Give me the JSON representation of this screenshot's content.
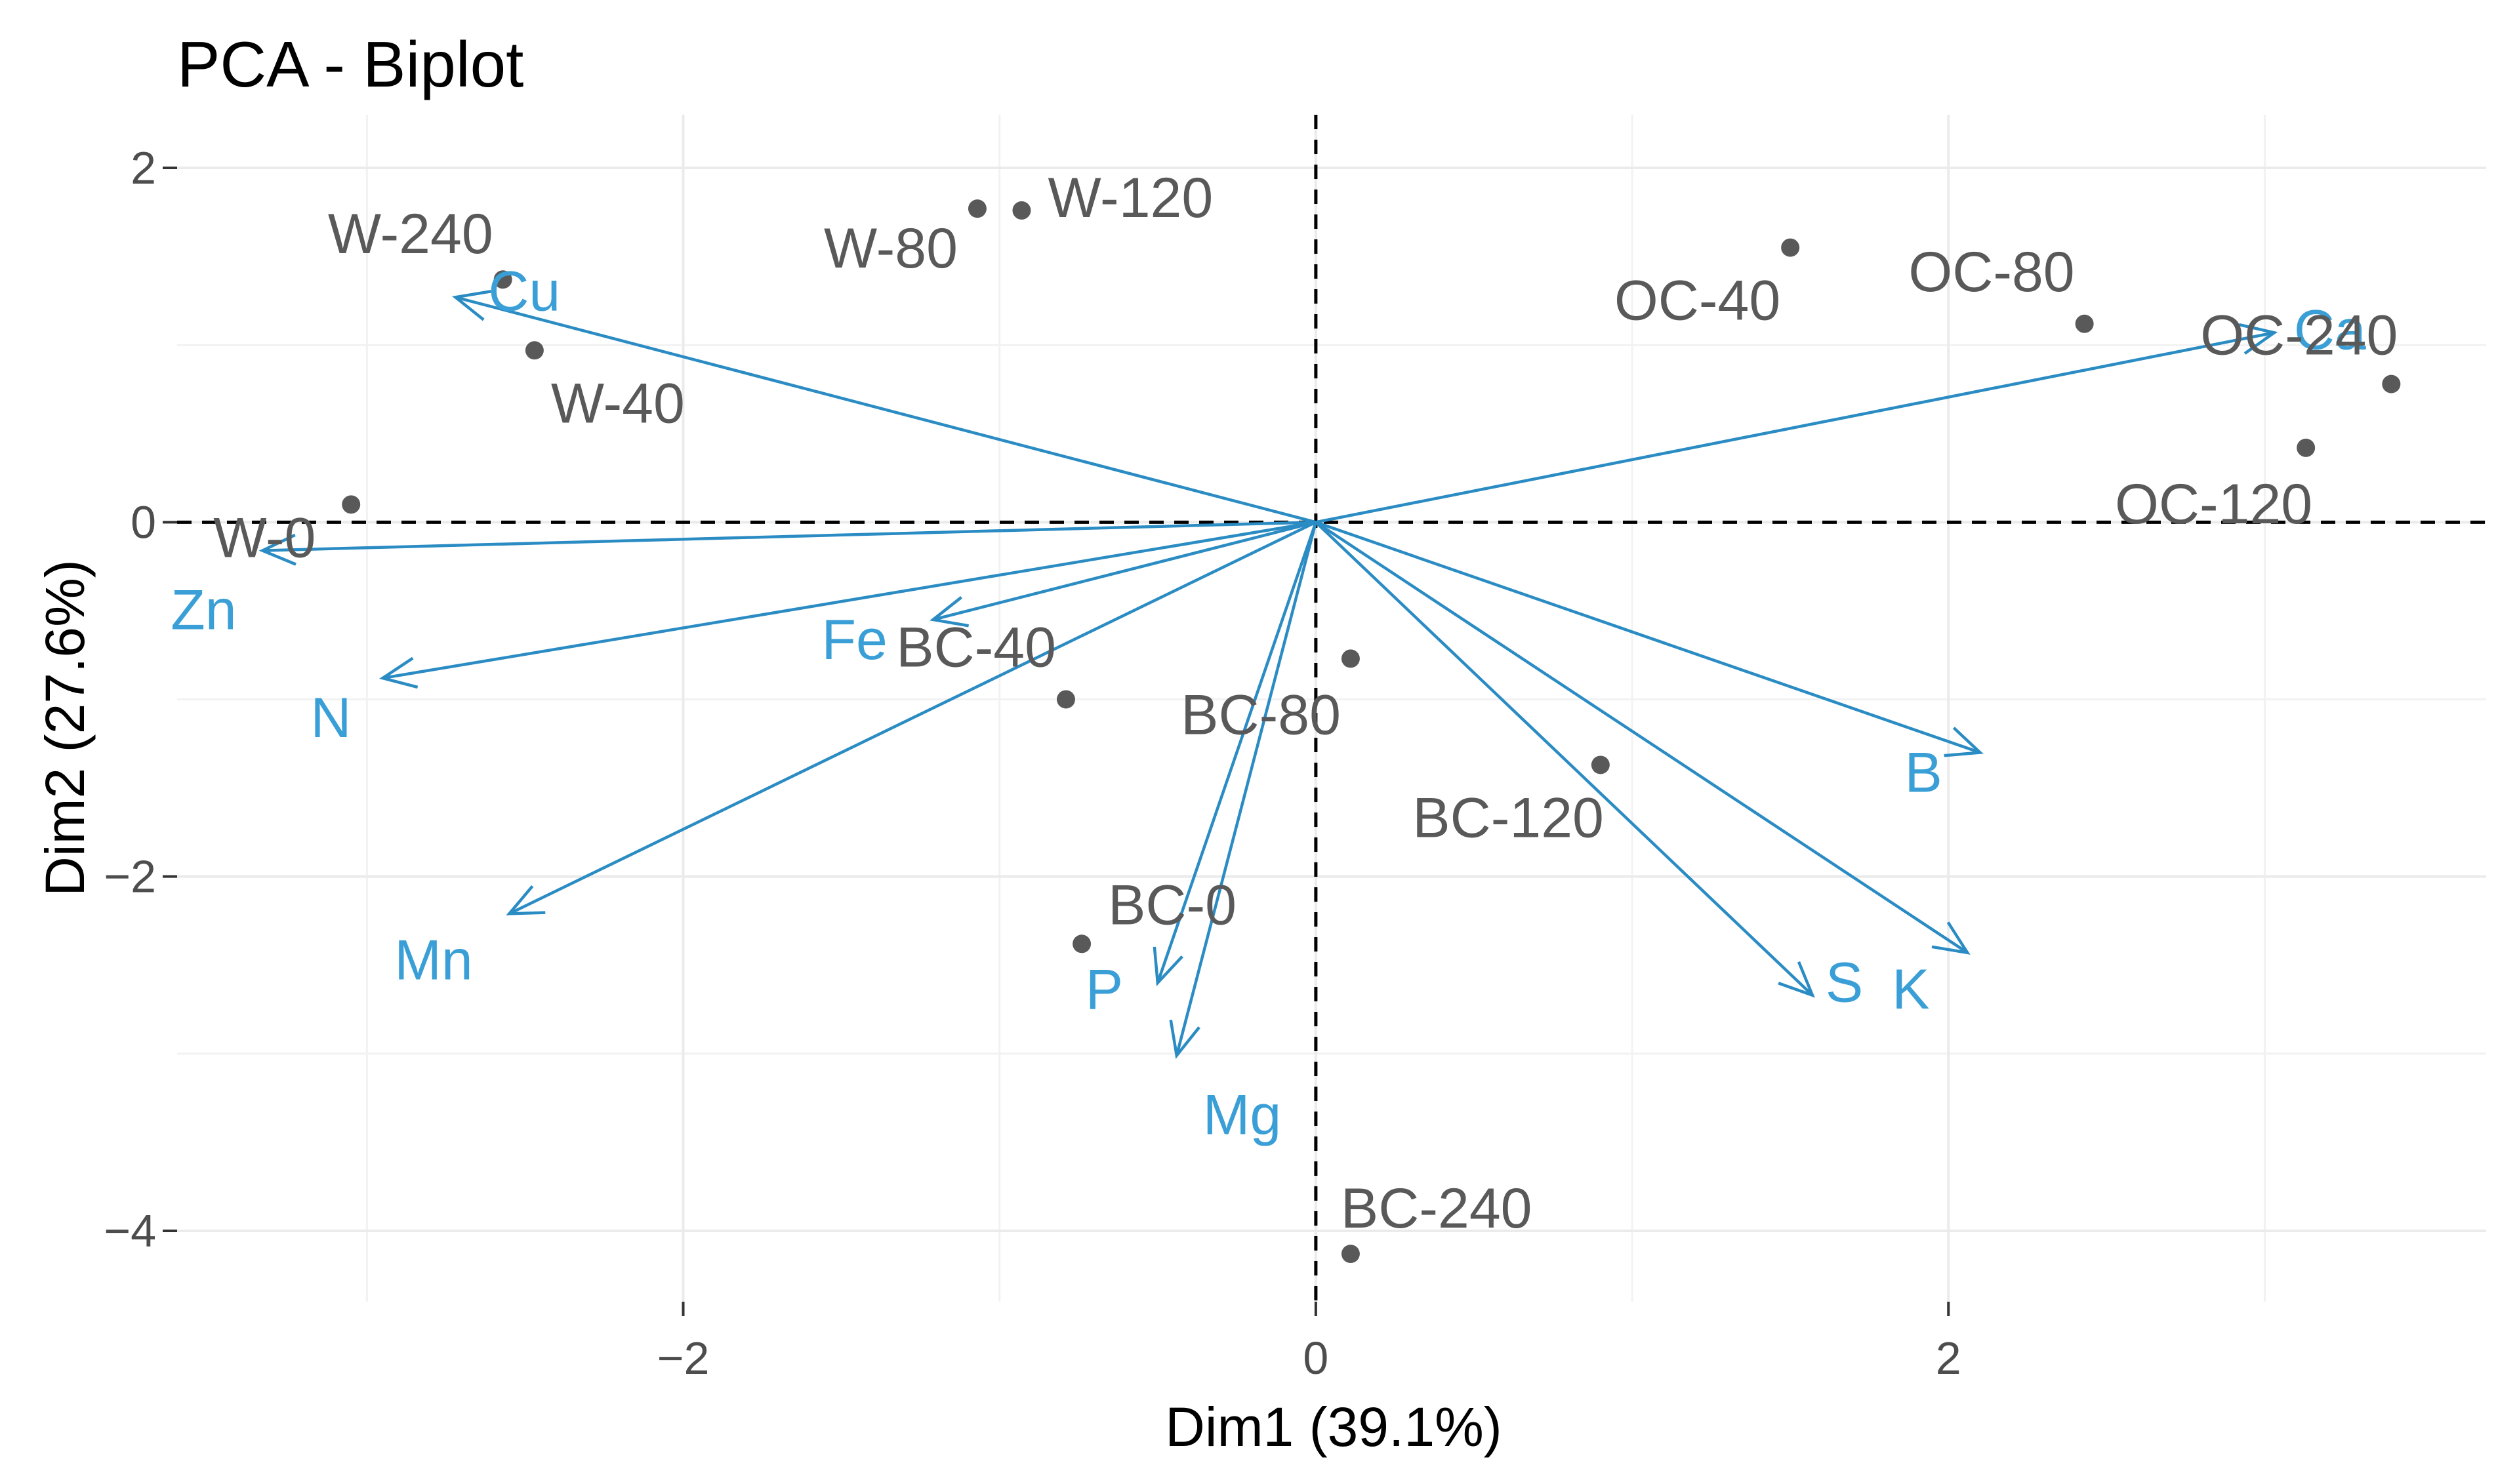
{
  "chart_data": {
    "type": "scatter",
    "subtype": "pca-biplot",
    "title": "PCA - Biplot",
    "xlabel": "Dim1 (39.1%)",
    "ylabel": "Dim2 (27.6%)",
    "xlim": [
      -3.6,
      3.7
    ],
    "ylim": [
      -4.4,
      2.3
    ],
    "x_ticks": [
      -2,
      0,
      2
    ],
    "y_ticks": [
      2,
      0,
      -2,
      -4
    ],
    "x_tick_labels": [
      "−2",
      "0",
      "2"
    ],
    "y_tick_labels": [
      "2",
      "0",
      "−2",
      "−4"
    ],
    "grid": true,
    "reference_lines": {
      "x": 0,
      "y": 0,
      "style": "dashed"
    },
    "colors": {
      "individuals": "#595959",
      "variables": "#3a9fd6",
      "arrows": "#2b8cc4",
      "grid": "#ebebeb"
    },
    "individuals": [
      {
        "label": "W-240",
        "x": -2.57,
        "y": 1.37
      },
      {
        "label": "W-40",
        "x": -2.47,
        "y": 0.97
      },
      {
        "label": "W-0",
        "x": -3.05,
        "y": 0.1
      },
      {
        "label": "W-80",
        "x": -1.07,
        "y": 1.77
      },
      {
        "label": "W-120",
        "x": -0.93,
        "y": 1.76
      },
      {
        "label": "OC-40",
        "x": 1.5,
        "y": 1.55
      },
      {
        "label": "OC-80",
        "x": 2.43,
        "y": 1.12
      },
      {
        "label": "OC-240",
        "x": 3.4,
        "y": 0.78
      },
      {
        "label": "OC-120",
        "x": 3.13,
        "y": 0.42
      },
      {
        "label": "BC-40",
        "x": -0.79,
        "y": -1.0
      },
      {
        "label": "BC-80",
        "x": 0.11,
        "y": -0.77
      },
      {
        "label": "BC-120",
        "x": 0.9,
        "y": -1.37
      },
      {
        "label": "BC-0",
        "x": -0.74,
        "y": -2.38
      },
      {
        "label": "BC-240",
        "x": 0.11,
        "y": -4.13
      }
    ],
    "variables": [
      {
        "label": "Cu",
        "x": -2.72,
        "y": 1.27
      },
      {
        "label": "Ca",
        "x": 3.03,
        "y": 1.07
      },
      {
        "label": "Zn",
        "x": -3.33,
        "y": -0.16
      },
      {
        "label": "N",
        "x": -2.95,
        "y": -0.88
      },
      {
        "label": "Fe",
        "x": -1.21,
        "y": -0.55
      },
      {
        "label": "Mn",
        "x": -2.55,
        "y": -2.21
      },
      {
        "label": "P",
        "x": -0.5,
        "y": -2.6
      },
      {
        "label": "Mg",
        "x": -0.44,
        "y": -3.01
      },
      {
        "label": "B",
        "x": 2.1,
        "y": -1.3
      },
      {
        "label": "S",
        "x": 1.57,
        "y": -2.67
      },
      {
        "label": "K",
        "x": 2.06,
        "y": -2.43
      }
    ]
  }
}
